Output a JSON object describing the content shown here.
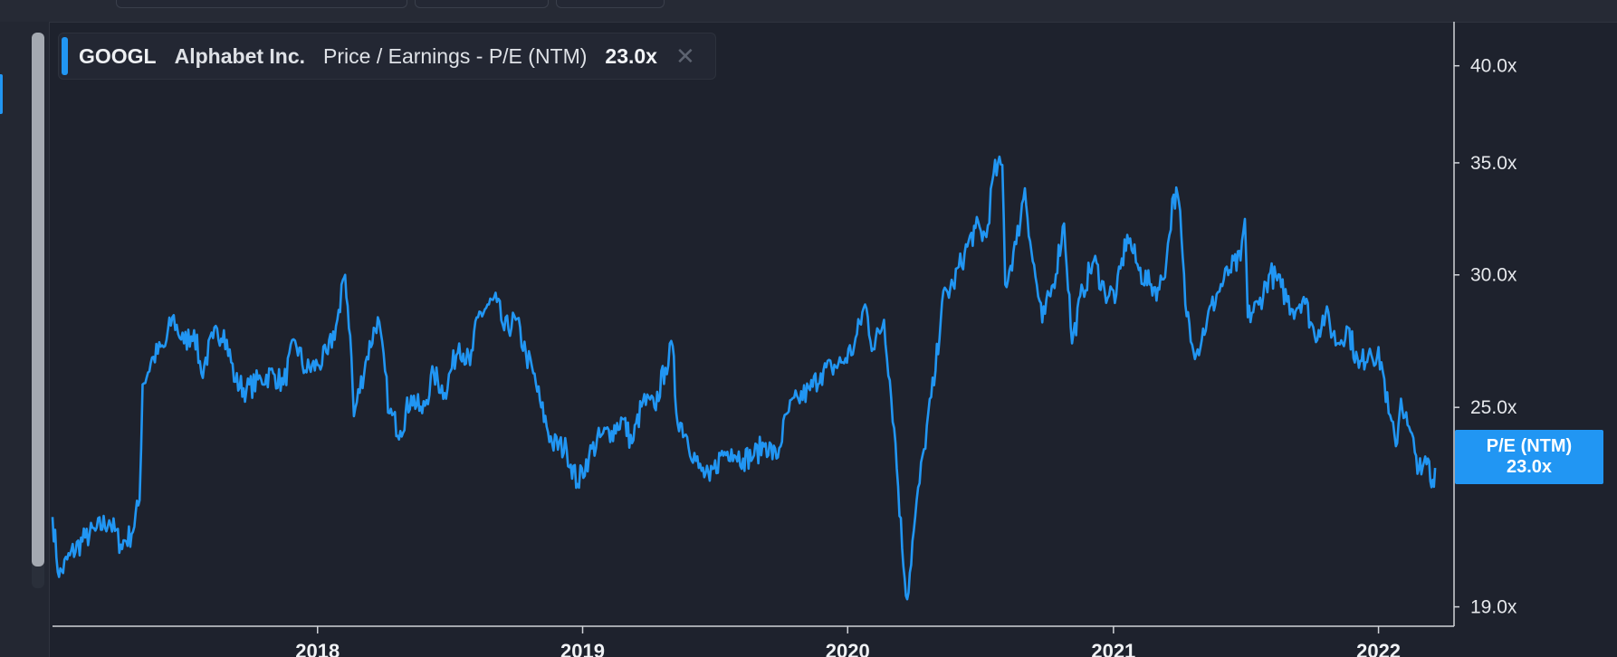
{
  "legend": {
    "ticker": "GOOGL",
    "company": "Alphabet Inc.",
    "metric": "Price / Earnings - P/E (NTM)",
    "value": "23.0x",
    "close_icon": "close-icon"
  },
  "badge": {
    "label": "P/E (NTM)",
    "value": "23.0x"
  },
  "colors": {
    "line": "#2196f3",
    "background": "#1e222d",
    "axis": "#d0d3d8"
  },
  "chart_data": {
    "type": "line",
    "title": "",
    "xlabel": "",
    "ylabel": "",
    "y_scale": "log",
    "ylim": [
      18.5,
      42.5
    ],
    "y_ticks": [
      {
        "value": 19,
        "label": "19.0x"
      },
      {
        "value": 25,
        "label": "25.0x"
      },
      {
        "value": 30,
        "label": "30.0x"
      },
      {
        "value": 35,
        "label": "35.0x"
      },
      {
        "value": 40,
        "label": "40.0x"
      }
    ],
    "x_ticks": [
      {
        "value": "2018-01-01",
        "label": "2018"
      },
      {
        "value": "2019-01-01",
        "label": "2019"
      },
      {
        "value": "2020-01-01",
        "label": "2020"
      },
      {
        "value": "2021-01-01",
        "label": "2021"
      },
      {
        "value": "2022-01-01",
        "label": "2022"
      }
    ],
    "xlim": [
      "2017-01-01",
      "2022-04-15"
    ],
    "grid": false,
    "legend_position": "top-left",
    "series": [
      {
        "name": "Price / Earnings - P/E (NTM)",
        "points": [
          [
            "2017-01-01",
            21.5
          ],
          [
            "2017-01-10",
            19.8
          ],
          [
            "2017-01-25",
            20.4
          ],
          [
            "2017-02-15",
            20.9
          ],
          [
            "2017-03-01",
            21.1
          ],
          [
            "2017-03-20",
            21.4
          ],
          [
            "2017-04-05",
            20.7
          ],
          [
            "2017-04-20",
            21.0
          ],
          [
            "2017-05-01",
            22.0
          ],
          [
            "2017-05-05",
            25.8
          ],
          [
            "2017-05-20",
            26.8
          ],
          [
            "2017-06-05",
            27.2
          ],
          [
            "2017-06-15",
            28.3
          ],
          [
            "2017-07-01",
            27.3
          ],
          [
            "2017-07-15",
            27.8
          ],
          [
            "2017-07-25",
            26.2
          ],
          [
            "2017-08-10",
            27.5
          ],
          [
            "2017-08-25",
            27.8
          ],
          [
            "2017-09-10",
            25.9
          ],
          [
            "2017-09-25",
            25.6
          ],
          [
            "2017-10-15",
            26.0
          ],
          [
            "2017-11-01",
            26.2
          ],
          [
            "2017-11-15",
            25.8
          ],
          [
            "2017-12-01",
            27.4
          ],
          [
            "2017-12-15",
            26.3
          ],
          [
            "2018-01-01",
            26.5
          ],
          [
            "2018-01-15",
            26.9
          ],
          [
            "2018-02-01",
            28.5
          ],
          [
            "2018-02-05",
            29.8
          ],
          [
            "2018-02-08",
            30.0
          ],
          [
            "2018-02-15",
            27.6
          ],
          [
            "2018-02-20",
            24.7
          ],
          [
            "2018-03-10",
            26.8
          ],
          [
            "2018-03-25",
            28.3
          ],
          [
            "2018-04-10",
            24.8
          ],
          [
            "2018-04-25",
            24.2
          ],
          [
            "2018-05-10",
            25.4
          ],
          [
            "2018-05-25",
            24.8
          ],
          [
            "2018-06-10",
            26.2
          ],
          [
            "2018-06-25",
            25.5
          ],
          [
            "2018-07-15",
            27.3
          ],
          [
            "2018-07-30",
            26.5
          ],
          [
            "2018-08-10",
            28.3
          ],
          [
            "2018-08-25",
            28.8
          ],
          [
            "2018-09-05",
            28.9
          ],
          [
            "2018-09-15",
            27.8
          ],
          [
            "2018-10-01",
            28.2
          ],
          [
            "2018-10-15",
            26.9
          ],
          [
            "2018-10-25",
            26.2
          ],
          [
            "2018-11-05",
            25.0
          ],
          [
            "2018-11-20",
            23.8
          ],
          [
            "2018-12-10",
            23.6
          ],
          [
            "2018-12-25",
            22.5
          ],
          [
            "2019-01-10",
            23.4
          ],
          [
            "2019-01-25",
            24.0
          ],
          [
            "2019-02-10",
            24.2
          ],
          [
            "2019-02-25",
            24.6
          ],
          [
            "2019-03-10",
            23.8
          ],
          [
            "2019-03-25",
            25.2
          ],
          [
            "2019-04-10",
            25.0
          ],
          [
            "2019-04-25",
            26.4
          ],
          [
            "2019-05-05",
            27.2
          ],
          [
            "2019-05-10",
            24.8
          ],
          [
            "2019-05-25",
            24.0
          ],
          [
            "2019-06-10",
            23.0
          ],
          [
            "2019-06-25",
            22.6
          ],
          [
            "2019-07-10",
            23.4
          ],
          [
            "2019-07-25",
            23.6
          ],
          [
            "2019-08-10",
            23.3
          ],
          [
            "2019-08-25",
            23.4
          ],
          [
            "2019-09-10",
            23.8
          ],
          [
            "2019-09-25",
            23.3
          ],
          [
            "2019-10-10",
            24.8
          ],
          [
            "2019-10-25",
            25.3
          ],
          [
            "2019-11-10",
            25.6
          ],
          [
            "2019-11-25",
            26.2
          ],
          [
            "2019-12-10",
            26.4
          ],
          [
            "2019-12-25",
            26.6
          ],
          [
            "2020-01-10",
            27.2
          ],
          [
            "2020-01-25",
            28.8
          ],
          [
            "2020-02-05",
            27.1
          ],
          [
            "2020-02-20",
            28.2
          ],
          [
            "2020-03-05",
            24.3
          ],
          [
            "2020-03-16",
            20.6
          ],
          [
            "2020-03-23",
            19.2
          ],
          [
            "2020-04-01",
            21.1
          ],
          [
            "2020-04-15",
            23.6
          ],
          [
            "2020-05-01",
            26.3
          ],
          [
            "2020-05-10",
            28.9
          ],
          [
            "2020-05-25",
            29.6
          ],
          [
            "2020-06-10",
            30.9
          ],
          [
            "2020-06-25",
            32.0
          ],
          [
            "2020-07-10",
            31.6
          ],
          [
            "2020-07-20",
            34.5
          ],
          [
            "2020-08-01",
            34.9
          ],
          [
            "2020-08-05",
            29.6
          ],
          [
            "2020-08-20",
            31.3
          ],
          [
            "2020-09-01",
            33.8
          ],
          [
            "2020-09-10",
            31.0
          ],
          [
            "2020-09-25",
            28.1
          ],
          [
            "2020-10-10",
            29.6
          ],
          [
            "2020-10-25",
            32.2
          ],
          [
            "2020-11-05",
            27.3
          ],
          [
            "2020-11-20",
            29.4
          ],
          [
            "2020-12-05",
            30.6
          ],
          [
            "2020-12-20",
            29.3
          ],
          [
            "2021-01-05",
            29.2
          ],
          [
            "2021-01-20",
            31.7
          ],
          [
            "2021-02-05",
            30.2
          ],
          [
            "2021-02-20",
            29.6
          ],
          [
            "2021-03-05",
            29.4
          ],
          [
            "2021-03-15",
            30.6
          ],
          [
            "2021-03-25",
            33.5
          ],
          [
            "2021-04-01",
            33.2
          ],
          [
            "2021-04-10",
            28.8
          ],
          [
            "2021-04-25",
            26.9
          ],
          [
            "2021-05-10",
            28.2
          ],
          [
            "2021-05-25",
            29.3
          ],
          [
            "2021-06-10",
            30.2
          ],
          [
            "2021-06-25",
            30.6
          ],
          [
            "2021-07-01",
            32.4
          ],
          [
            "2021-07-05",
            28.3
          ],
          [
            "2021-07-20",
            28.8
          ],
          [
            "2021-08-05",
            30.1
          ],
          [
            "2021-08-20",
            29.5
          ],
          [
            "2021-09-05",
            28.6
          ],
          [
            "2021-09-20",
            29.1
          ],
          [
            "2021-10-05",
            27.6
          ],
          [
            "2021-10-20",
            28.4
          ],
          [
            "2021-11-05",
            27.3
          ],
          [
            "2021-11-20",
            27.9
          ],
          [
            "2021-12-05",
            26.4
          ],
          [
            "2021-12-20",
            27.1
          ],
          [
            "2022-01-05",
            26.6
          ],
          [
            "2022-01-15",
            24.8
          ],
          [
            "2022-01-25",
            23.7
          ],
          [
            "2022-02-01",
            25.3
          ],
          [
            "2022-02-10",
            24.4
          ],
          [
            "2022-02-20",
            23.5
          ],
          [
            "2022-03-01",
            22.8
          ],
          [
            "2022-03-10",
            23.3
          ],
          [
            "2022-03-15",
            22.4
          ],
          [
            "2022-03-20",
            23.0
          ]
        ]
      }
    ]
  }
}
